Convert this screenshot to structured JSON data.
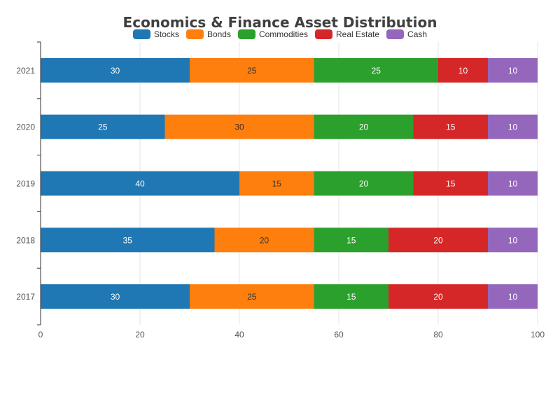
{
  "chart_data": {
    "type": "bar",
    "orientation": "horizontal",
    "stacked": true,
    "title": "Economics & Finance Asset Distribution",
    "categories": [
      "2017",
      "2018",
      "2019",
      "2020",
      "2021"
    ],
    "series": [
      {
        "name": "Stocks",
        "color": "#1f77b4",
        "values": [
          30,
          35,
          40,
          25,
          30
        ]
      },
      {
        "name": "Bonds",
        "color": "#ff7f0e",
        "values": [
          25,
          20,
          15,
          30,
          25
        ]
      },
      {
        "name": "Commodities",
        "color": "#2ca02c",
        "values": [
          15,
          15,
          20,
          20,
          25
        ]
      },
      {
        "name": "Real Estate",
        "color": "#d62728",
        "values": [
          20,
          20,
          15,
          15,
          10
        ]
      },
      {
        "name": "Cash",
        "color": "#9467bd",
        "values": [
          10,
          10,
          10,
          10,
          10
        ]
      }
    ],
    "xlim": [
      0,
      100
    ],
    "xticks": [
      "0",
      "20",
      "40",
      "60",
      "80",
      "100"
    ],
    "grid": true,
    "legend_position": "top"
  }
}
